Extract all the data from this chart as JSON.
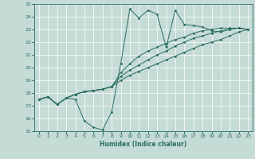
{
  "xlabel": "Humidex (Indice chaleur)",
  "ylabel": "",
  "xlim": [
    -0.5,
    23.5
  ],
  "ylim": [
    15,
    25
  ],
  "xticks": [
    0,
    1,
    2,
    3,
    4,
    5,
    6,
    7,
    8,
    9,
    10,
    11,
    12,
    13,
    14,
    15,
    16,
    17,
    18,
    19,
    20,
    21,
    22,
    23
  ],
  "yticks": [
    15,
    16,
    17,
    18,
    19,
    20,
    21,
    22,
    23,
    24,
    25
  ],
  "bg_color": "#c5dbd6",
  "line_color": "#2a6e62",
  "grid_color": "#ffffff",
  "series": [
    [
      17.5,
      17.7,
      17.1,
      17.6,
      17.5,
      15.8,
      15.3,
      15.1,
      16.5,
      20.3,
      24.6,
      23.9,
      24.5,
      24.2,
      21.6,
      24.5,
      23.4,
      23.3,
      23.2,
      22.9,
      22.8,
      23.0,
      23.1,
      23.0
    ],
    [
      17.5,
      17.7,
      17.1,
      17.6,
      17.9,
      18.1,
      18.2,
      18.3,
      18.5,
      19.0,
      19.4,
      19.7,
      20.0,
      20.3,
      20.6,
      20.9,
      21.2,
      21.5,
      21.8,
      22.0,
      22.2,
      22.5,
      22.8,
      23.0
    ],
    [
      17.5,
      17.7,
      17.1,
      17.6,
      17.9,
      18.1,
      18.2,
      18.3,
      18.5,
      19.3,
      19.8,
      20.2,
      20.6,
      21.0,
      21.3,
      21.7,
      22.0,
      22.3,
      22.5,
      22.7,
      22.9,
      23.0,
      23.1,
      23.0
    ],
    [
      17.5,
      17.7,
      17.1,
      17.6,
      17.9,
      18.1,
      18.2,
      18.3,
      18.5,
      19.6,
      20.3,
      20.9,
      21.3,
      21.6,
      21.9,
      22.2,
      22.4,
      22.7,
      22.9,
      23.0,
      23.1,
      23.1,
      23.1,
      23.0
    ]
  ]
}
